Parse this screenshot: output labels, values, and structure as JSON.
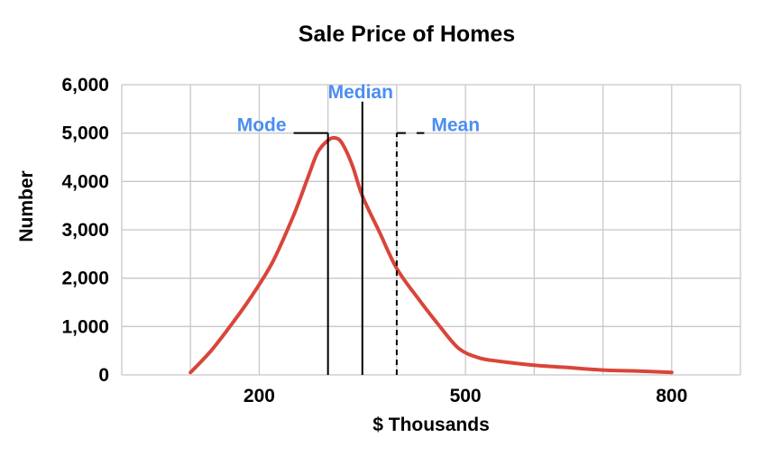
{
  "chart_data": {
    "type": "line",
    "title": "Sale Price of Homes",
    "xlabel": "$ Thousands",
    "ylabel": "Number",
    "xlim": [
      0,
      900
    ],
    "ylim": [
      0,
      6000
    ],
    "x_ticks": [
      200,
      500,
      800
    ],
    "y_ticks": [
      0,
      1000,
      2000,
      3000,
      4000,
      5000,
      6000
    ],
    "y_tick_labels": [
      "0",
      "1,000",
      "2,000",
      "3,000",
      "4,000",
      "5,000",
      "6,000"
    ],
    "grid": true,
    "series": [
      {
        "color": "#d9453a",
        "x": [
          100,
          130,
          160,
          190,
          220,
          250,
          270,
          285,
          300,
          310,
          320,
          335,
          350,
          375,
          400,
          430,
          460,
          490,
          520,
          550,
          600,
          650,
          700,
          750,
          800
        ],
        "y": [
          50,
          500,
          1050,
          1650,
          2350,
          3300,
          4050,
          4600,
          4850,
          4900,
          4800,
          4350,
          3700,
          2950,
          2200,
          1600,
          1050,
          550,
          350,
          280,
          200,
          150,
          100,
          80,
          50
        ]
      }
    ],
    "annotations": [
      {
        "label": "Mode",
        "x": 300,
        "y": 5000,
        "color": "#4a8ef0",
        "line_style": "solid",
        "line_top": 5000,
        "leader_from": 250
      },
      {
        "label": "Median",
        "x": 350,
        "y": 5650,
        "color": "#4a8ef0",
        "line_style": "solid",
        "line_top": 5650
      },
      {
        "label": "Mean",
        "x": 400,
        "y": 5000,
        "color": "#4a8ef0",
        "line_style": "dashed",
        "line_top": 5000,
        "leader_to": 440
      }
    ]
  }
}
